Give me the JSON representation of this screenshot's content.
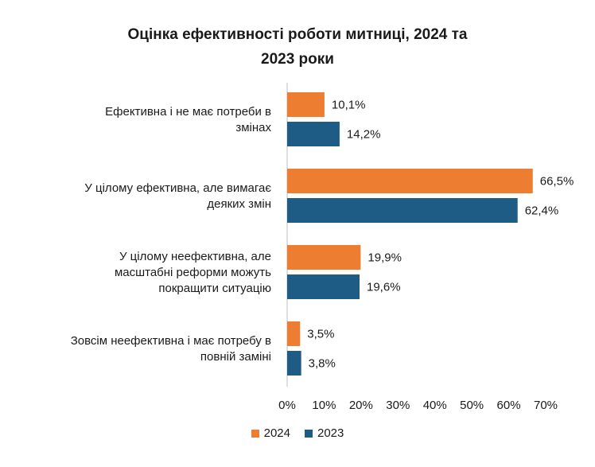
{
  "chart_data": {
    "type": "bar",
    "orientation": "horizontal",
    "title_lines": [
      "Оцінка ефективності роботи митниці, 2024 та",
      "2023 роки"
    ],
    "categories": [
      [
        "Ефективна і не має потреби в",
        "змінах"
      ],
      [
        "У цілому ефективна, але вимагає",
        "деяких змін"
      ],
      [
        "У цілому неефективна, але",
        "масштабні реформи можуть",
        "покращити ситуацію"
      ],
      [
        "Зовсім неефективна і має потребу в",
        "повній заміні"
      ]
    ],
    "series": [
      {
        "name": "2024",
        "color": "#ED7D31",
        "values": [
          10.1,
          66.5,
          19.9,
          3.5
        ],
        "labels": [
          "10,1%",
          "66,5%",
          "19,9%",
          "3,5%"
        ]
      },
      {
        "name": "2023",
        "color": "#1F5C85",
        "values": [
          14.2,
          62.4,
          19.6,
          3.8
        ],
        "labels": [
          "14,2%",
          "62,4%",
          "19,6%",
          "3,8%"
        ]
      }
    ],
    "xlim": [
      0,
      70
    ],
    "ticks": [
      0,
      10,
      20,
      30,
      40,
      50,
      60,
      70
    ],
    "tick_labels": [
      "0%",
      "10%",
      "20%",
      "30%",
      "40%",
      "50%",
      "60%",
      "70%"
    ],
    "grid": false,
    "legend_position": "bottom"
  }
}
